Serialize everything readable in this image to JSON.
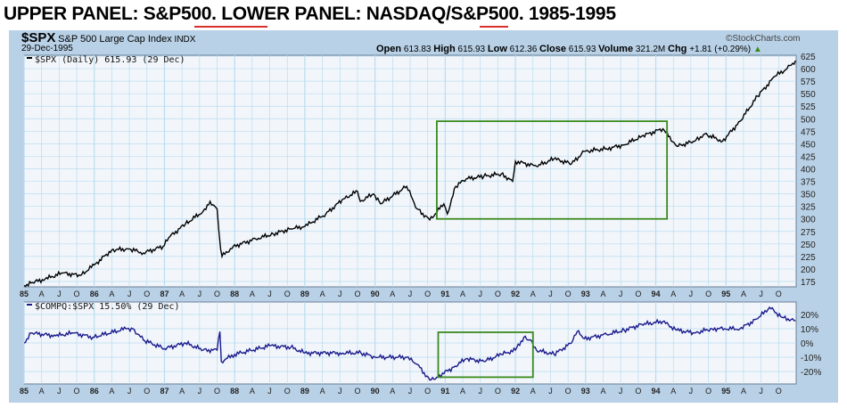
{
  "title": "UPPER PANEL: S&P500.  LOWER PANEL: NASDAQ/S&P500.  1985-1995",
  "header": {
    "symbol": "$SPX",
    "name": "S&P 500 Large Cap Index",
    "exchange": "INDX",
    "date": "29-Dec-1995",
    "watermark": "©StockCharts.com",
    "quote": {
      "open_label": "Open",
      "open": "613.83",
      "high_label": "High",
      "high": "615.93",
      "low_label": "Low",
      "low": "612.36",
      "close_label": "Close",
      "close": "615.93",
      "volume_label": "Volume",
      "volume": "321.2M",
      "chg_label": "Chg",
      "chg": "+1.81 (+0.29%)"
    }
  },
  "colors": {
    "background": "#b9d1e6",
    "plot": "#f2f6fb",
    "grid": "#b9dcef",
    "upper_line": "#000000",
    "lower_line": "#1a1a8c",
    "box": "#3a8a1e",
    "underline": "#d9302c"
  },
  "chart_data": [
    {
      "type": "line",
      "legend": "$SPX (Daily) 615.93 (29 Dec)",
      "ylim": [
        150,
        630
      ],
      "yticks": [
        175,
        200,
        225,
        250,
        275,
        300,
        325,
        350,
        375,
        400,
        425,
        450,
        475,
        500,
        525,
        550,
        575,
        600,
        625
      ],
      "xlim": [
        1985.0,
        1996.0
      ],
      "xtick_labels": [
        "85",
        "A",
        "J",
        "O",
        "86",
        "A",
        "J",
        "O",
        "87",
        "A",
        "J",
        "O",
        "88",
        "A",
        "J",
        "O",
        "89",
        "A",
        "J",
        "O",
        "90",
        "A",
        "J",
        "O",
        "91",
        "A",
        "J",
        "O",
        "92",
        "A",
        "J",
        "O",
        "93",
        "A",
        "J",
        "O",
        "94",
        "A",
        "J",
        "O",
        "95",
        "A",
        "J",
        "O"
      ],
      "grid": true,
      "x": [
        1985.0,
        1985.1,
        1985.3,
        1985.55,
        1985.8,
        1986.0,
        1986.25,
        1986.5,
        1986.7,
        1986.98,
        1987.08,
        1987.3,
        1987.55,
        1987.65,
        1987.75,
        1987.8,
        1987.82,
        1987.98,
        1988.3,
        1988.55,
        1988.8,
        1989.0,
        1989.3,
        1989.55,
        1989.75,
        1989.79,
        1989.98,
        1990.08,
        1990.45,
        1990.6,
        1990.78,
        1990.98,
        1991.03,
        1991.15,
        1991.3,
        1991.55,
        1991.8,
        1991.96,
        1992.0,
        1992.3,
        1992.55,
        1992.8,
        1992.98,
        1993.3,
        1993.55,
        1993.8,
        1994.1,
        1994.3,
        1994.55,
        1994.7,
        1994.95,
        1995.2,
        1995.45,
        1995.7,
        1995.87,
        1995.99
      ],
      "y": [
        167,
        172,
        180,
        192,
        187,
        208,
        238,
        240,
        232,
        245,
        265,
        290,
        315,
        335,
        320,
        240,
        225,
        245,
        260,
        270,
        280,
        285,
        310,
        340,
        355,
        335,
        350,
        330,
        365,
        320,
        298,
        330,
        310,
        365,
        380,
        385,
        390,
        375,
        415,
        405,
        420,
        410,
        435,
        440,
        448,
        465,
        480,
        445,
        455,
        470,
        455,
        495,
        545,
        585,
        600,
        616
      ],
      "annotation_box": {
        "x": [
          1990.88,
          1994.16
        ],
        "y": [
          300,
          495
        ]
      }
    },
    {
      "type": "line",
      "legend": "$COMPQ:$SPX 15.50% (29 Dec)",
      "ylim": [
        -28,
        28
      ],
      "ytick_labels": [
        "20%",
        "10%",
        "0%",
        "-10%",
        "-20%"
      ],
      "yticks": [
        20,
        10,
        0,
        -10,
        -20
      ],
      "xlim": [
        1985.0,
        1996.0
      ],
      "xtick_labels": [
        "85",
        "A",
        "J",
        "O",
        "86",
        "A",
        "J",
        "O",
        "87",
        "A",
        "J",
        "O",
        "88",
        "A",
        "J",
        "O",
        "89",
        "A",
        "J",
        "O",
        "90",
        "A",
        "J",
        "O",
        "91",
        "A",
        "J",
        "O",
        "92",
        "A",
        "J",
        "O",
        "93",
        "A",
        "J",
        "O",
        "94",
        "A",
        "J",
        "O",
        "95",
        "A",
        "J",
        "O"
      ],
      "grid": true,
      "x": [
        1985.0,
        1985.1,
        1985.45,
        1985.7,
        1985.98,
        1986.45,
        1986.55,
        1986.7,
        1987.0,
        1987.3,
        1987.55,
        1987.75,
        1987.79,
        1987.81,
        1988.0,
        1988.5,
        1988.8,
        1989.0,
        1989.5,
        1989.8,
        1990.0,
        1990.45,
        1990.6,
        1990.78,
        1990.88,
        1991.12,
        1991.3,
        1991.55,
        1991.8,
        1992.0,
        1992.12,
        1992.22,
        1992.3,
        1992.55,
        1992.8,
        1992.88,
        1992.98,
        1993.3,
        1993.55,
        1993.8,
        1994.1,
        1994.3,
        1994.55,
        1994.8,
        1994.98,
        1995.2,
        1995.45,
        1995.62,
        1995.8,
        1995.99
      ],
      "y": [
        0,
        7,
        5,
        7,
        4,
        10,
        10,
        2,
        -4,
        0,
        -5,
        -5,
        8,
        -13,
        -8,
        -2,
        -3,
        -7,
        -7,
        -7,
        -10,
        -10,
        -15,
        -26,
        -24,
        -17,
        -11,
        -13,
        -8,
        -5,
        4,
        2,
        -5,
        -8,
        0,
        8,
        3,
        6,
        9,
        13,
        15,
        9,
        7,
        10,
        10,
        10,
        17,
        25,
        18,
        15.5
      ],
      "annotation_box": {
        "x": [
          1990.9,
          1992.25
        ],
        "y": [
          -24,
          7.5
        ]
      }
    }
  ]
}
